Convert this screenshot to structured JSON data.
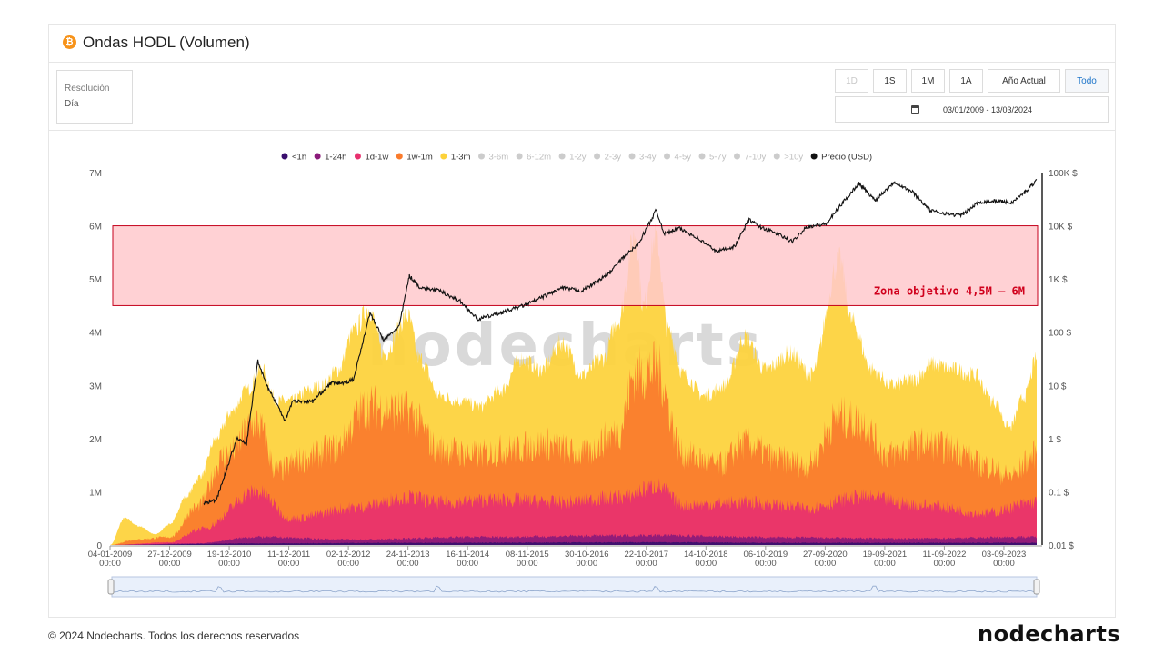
{
  "header": {
    "title": "Ondas HODL (Volumen)",
    "icon": "bitcoin-icon"
  },
  "resolution": {
    "label": "Resolución",
    "value": "Día"
  },
  "range_buttons": [
    {
      "label": "1D",
      "state": "disabled"
    },
    {
      "label": "1S",
      "state": "normal"
    },
    {
      "label": "1M",
      "state": "normal"
    },
    {
      "label": "1A",
      "state": "normal"
    },
    {
      "label": "Año Actual",
      "state": "normal"
    },
    {
      "label": "Todo",
      "state": "active"
    }
  ],
  "date_range": "03/01/2009 - 13/03/2024",
  "watermark": "nodecharts",
  "footer": {
    "copyright": "© 2024 Nodecharts. Todos los derechos reservados",
    "logo": "nodecharts"
  },
  "chart_data": {
    "type": "area",
    "title": "",
    "legend": {
      "placement": "top-center",
      "items": [
        {
          "name": "<1h",
          "color": "#3a0f6e",
          "active": true
        },
        {
          "name": "1-24h",
          "color": "#8b1a7a",
          "active": true
        },
        {
          "name": "1d-1w",
          "color": "#e8306e",
          "active": true
        },
        {
          "name": "1w-1m",
          "color": "#fa7b2c",
          "active": true
        },
        {
          "name": "1-3m",
          "color": "#fdd23a",
          "active": true
        },
        {
          "name": "3-6m",
          "color": "#cccccc",
          "active": false
        },
        {
          "name": "6-12m",
          "color": "#cccccc",
          "active": false
        },
        {
          "name": "1-2y",
          "color": "#cccccc",
          "active": false
        },
        {
          "name": "2-3y",
          "color": "#cccccc",
          "active": false
        },
        {
          "name": "3-4y",
          "color": "#cccccc",
          "active": false
        },
        {
          "name": "4-5y",
          "color": "#cccccc",
          "active": false
        },
        {
          "name": "5-7y",
          "color": "#cccccc",
          "active": false
        },
        {
          "name": "7-10y",
          "color": "#cccccc",
          "active": false
        },
        {
          "name": ">10y",
          "color": "#cccccc",
          "active": false
        },
        {
          "name": "Precio (USD)",
          "color": "#111111",
          "active": true
        }
      ]
    },
    "y_left": {
      "min": 0,
      "max": 7000000,
      "ticks": [
        "0",
        "1M",
        "2M",
        "3M",
        "4M",
        "5M",
        "6M",
        "7M"
      ]
    },
    "y_right": {
      "scale": "log",
      "min": 0.01,
      "max": 100000,
      "ticks": [
        "0.01 $",
        "0.1 $",
        "1 $",
        "10 $",
        "100 $",
        "1K $",
        "10K $",
        "100K $"
      ]
    },
    "x_ticks": [
      [
        "04-01-2009",
        "00:00"
      ],
      [
        "27-12-2009",
        "00:00"
      ],
      [
        "19-12-2010",
        "00:00"
      ],
      [
        "11-12-2011",
        "00:00"
      ],
      [
        "02-12-2012",
        "00:00"
      ],
      [
        "24-11-2013",
        "00:00"
      ],
      [
        "16-11-2014",
        "00:00"
      ],
      [
        "08-11-2015",
        "00:00"
      ],
      [
        "30-10-2016",
        "00:00"
      ],
      [
        "22-10-2017",
        "00:00"
      ],
      [
        "14-10-2018",
        "00:00"
      ],
      [
        "06-10-2019",
        "00:00"
      ],
      [
        "27-09-2020",
        "00:00"
      ],
      [
        "19-09-2021",
        "00:00"
      ],
      [
        "11-09-2022",
        "00:00"
      ],
      [
        "03-09-2023",
        "00:00"
      ]
    ],
    "x_range": [
      "2009-01-04",
      "2024-03-13"
    ],
    "series": [
      {
        "name": "1-3m",
        "color": "#fdd23a",
        "unit": "BTC",
        "points": [
          [
            "2009-01-04",
            0
          ],
          [
            "2009-04-01",
            500000
          ],
          [
            "2009-07-01",
            350000
          ],
          [
            "2009-10-01",
            200000
          ],
          [
            "2010-01-01",
            400000
          ],
          [
            "2010-04-01",
            900000
          ],
          [
            "2010-07-01",
            1300000
          ],
          [
            "2010-10-01",
            2000000
          ],
          [
            "2011-01-01",
            2500000
          ],
          [
            "2011-04-01",
            2900000
          ],
          [
            "2011-07-01",
            3300000
          ],
          [
            "2011-10-01",
            2700000
          ],
          [
            "2012-01-01",
            2700000
          ],
          [
            "2012-04-01",
            2900000
          ],
          [
            "2012-07-01",
            3000000
          ],
          [
            "2012-10-01",
            3300000
          ],
          [
            "2013-01-01",
            4000000
          ],
          [
            "2013-04-01",
            4450000
          ],
          [
            "2013-07-01",
            3600000
          ],
          [
            "2013-11-20",
            4300000
          ],
          [
            "2014-02-01",
            3500000
          ],
          [
            "2014-06-01",
            2800000
          ],
          [
            "2014-10-01",
            2700000
          ],
          [
            "2015-02-01",
            2600000
          ],
          [
            "2015-06-01",
            2900000
          ],
          [
            "2015-10-01",
            3500000
          ],
          [
            "2016-02-01",
            3300000
          ],
          [
            "2016-06-01",
            3800000
          ],
          [
            "2016-10-01",
            3200000
          ],
          [
            "2017-02-01",
            3500000
          ],
          [
            "2017-05-01",
            4200000
          ],
          [
            "2017-08-15",
            5850000
          ],
          [
            "2017-10-01",
            4500000
          ],
          [
            "2017-12-15",
            5800000
          ],
          [
            "2018-03-01",
            4000000
          ],
          [
            "2018-06-01",
            3200000
          ],
          [
            "2018-10-01",
            2800000
          ],
          [
            "2019-02-01",
            3000000
          ],
          [
            "2019-06-01",
            3900000
          ],
          [
            "2019-10-01",
            3300000
          ],
          [
            "2020-03-01",
            3600000
          ],
          [
            "2020-07-01",
            3200000
          ],
          [
            "2020-12-20",
            5350000
          ],
          [
            "2021-03-01",
            4200000
          ],
          [
            "2021-07-01",
            3300000
          ],
          [
            "2021-11-01",
            3000000
          ],
          [
            "2022-03-01",
            3100000
          ],
          [
            "2022-07-01",
            3400000
          ],
          [
            "2022-11-01",
            3300000
          ],
          [
            "2023-03-01",
            3200000
          ],
          [
            "2023-07-01",
            2700000
          ],
          [
            "2023-10-01",
            2200000
          ],
          [
            "2024-01-01",
            2800000
          ],
          [
            "2024-03-13",
            3500000
          ]
        ]
      },
      {
        "name": "1w-1m",
        "color": "#fa7b2c",
        "unit": "BTC",
        "points": [
          [
            "2009-01-04",
            0
          ],
          [
            "2009-06-01",
            100000
          ],
          [
            "2010-01-01",
            150000
          ],
          [
            "2010-06-01",
            700000
          ],
          [
            "2010-12-01",
            1700000
          ],
          [
            "2011-06-01",
            2300000
          ],
          [
            "2011-10-01",
            1400000
          ],
          [
            "2012-03-01",
            1600000
          ],
          [
            "2012-09-01",
            1800000
          ],
          [
            "2013-04-01",
            2600000
          ],
          [
            "2013-11-20",
            2500000
          ],
          [
            "2014-06-01",
            1800000
          ],
          [
            "2015-01-01",
            1700000
          ],
          [
            "2015-08-01",
            1800000
          ],
          [
            "2016-03-01",
            1900000
          ],
          [
            "2016-10-01",
            1700000
          ],
          [
            "2017-05-01",
            2100000
          ],
          [
            "2017-08-15",
            3200000
          ],
          [
            "2017-12-15",
            3300000
          ],
          [
            "2018-06-01",
            1700000
          ],
          [
            "2019-01-01",
            1500000
          ],
          [
            "2019-06-01",
            1900000
          ],
          [
            "2020-01-01",
            1600000
          ],
          [
            "2020-06-01",
            1500000
          ],
          [
            "2020-12-20",
            2400000
          ],
          [
            "2021-05-01",
            2300000
          ],
          [
            "2021-10-01",
            1700000
          ],
          [
            "2022-05-01",
            1900000
          ],
          [
            "2022-11-01",
            1800000
          ],
          [
            "2023-05-01",
            1500000
          ],
          [
            "2023-10-01",
            1300000
          ],
          [
            "2024-03-13",
            1700000
          ]
        ]
      },
      {
        "name": "1d-1w",
        "color": "#e8306e",
        "unit": "BTC",
        "points": [
          [
            "2009-01-04",
            0
          ],
          [
            "2010-01-01",
            50000
          ],
          [
            "2010-07-01",
            300000
          ],
          [
            "2011-06-01",
            1000000
          ],
          [
            "2012-01-01",
            500000
          ],
          [
            "2013-01-01",
            700000
          ],
          [
            "2013-11-20",
            900000
          ],
          [
            "2014-06-01",
            800000
          ],
          [
            "2015-06-01",
            850000
          ],
          [
            "2016-06-01",
            800000
          ],
          [
            "2017-06-01",
            900000
          ],
          [
            "2017-12-15",
            1100000
          ],
          [
            "2018-06-01",
            750000
          ],
          [
            "2019-06-01",
            800000
          ],
          [
            "2020-06-01",
            700000
          ],
          [
            "2021-05-01",
            900000
          ],
          [
            "2022-05-01",
            750000
          ],
          [
            "2023-05-01",
            600000
          ],
          [
            "2024-03-13",
            800000
          ]
        ]
      },
      {
        "name": "1-24h",
        "color": "#8b1a7a",
        "unit": "BTC",
        "points": [
          [
            "2009-01-04",
            0
          ],
          [
            "2010-06-01",
            30000
          ],
          [
            "2011-06-01",
            150000
          ],
          [
            "2013-01-01",
            100000
          ],
          [
            "2015-01-01",
            150000
          ],
          [
            "2017-12-15",
            180000
          ],
          [
            "2020-01-01",
            140000
          ],
          [
            "2022-01-01",
            120000
          ],
          [
            "2024-03-13",
            150000
          ]
        ]
      },
      {
        "name": "<1h",
        "color": "#3a0f6e",
        "unit": "BTC",
        "points": [
          [
            "2009-01-04",
            0
          ],
          [
            "2011-06-01",
            30000
          ],
          [
            "2014-01-01",
            40000
          ],
          [
            "2017-12-15",
            50000
          ],
          [
            "2020-01-01",
            40000
          ],
          [
            "2024-03-13",
            40000
          ]
        ]
      }
    ],
    "price_series": {
      "name": "Precio (USD)",
      "color": "#111111",
      "axis": "right",
      "points": [
        [
          "2010-07-18",
          0.06
        ],
        [
          "2010-10-01",
          0.07
        ],
        [
          "2010-12-01",
          0.25
        ],
        [
          "2011-02-01",
          1.0
        ],
        [
          "2011-04-01",
          0.8
        ],
        [
          "2011-06-08",
          29
        ],
        [
          "2011-08-01",
          10
        ],
        [
          "2011-11-18",
          2.2
        ],
        [
          "2012-01-01",
          5
        ],
        [
          "2012-05-01",
          5
        ],
        [
          "2012-08-15",
          11
        ],
        [
          "2012-11-01",
          11
        ],
        [
          "2013-01-01",
          13
        ],
        [
          "2013-04-09",
          230
        ],
        [
          "2013-07-01",
          70
        ],
        [
          "2013-10-01",
          130
        ],
        [
          "2013-12-01",
          1150
        ],
        [
          "2014-02-01",
          700
        ],
        [
          "2014-06-01",
          600
        ],
        [
          "2014-10-01",
          380
        ],
        [
          "2015-01-14",
          175
        ],
        [
          "2015-06-01",
          230
        ],
        [
          "2015-11-01",
          330
        ],
        [
          "2016-06-01",
          680
        ],
        [
          "2016-10-01",
          600
        ],
        [
          "2017-03-01",
          1200
        ],
        [
          "2017-06-01",
          2500
        ],
        [
          "2017-09-01",
          4500
        ],
        [
          "2017-12-17",
          19500
        ],
        [
          "2018-02-06",
          7000
        ],
        [
          "2018-05-01",
          9000
        ],
        [
          "2018-08-01",
          6500
        ],
        [
          "2018-12-15",
          3300
        ],
        [
          "2019-04-01",
          4100
        ],
        [
          "2019-06-26",
          13000
        ],
        [
          "2019-09-01",
          9500
        ],
        [
          "2019-12-15",
          7000
        ],
        [
          "2020-03-12",
          5000
        ],
        [
          "2020-06-01",
          9500
        ],
        [
          "2020-10-01",
          10800
        ],
        [
          "2020-12-20",
          23000
        ],
        [
          "2021-04-14",
          63000
        ],
        [
          "2021-07-20",
          30000
        ],
        [
          "2021-11-10",
          67000
        ],
        [
          "2022-03-01",
          43000
        ],
        [
          "2022-06-18",
          19000
        ],
        [
          "2022-11-21",
          15800
        ],
        [
          "2023-01-01",
          16600
        ],
        [
          "2023-04-01",
          28000
        ],
        [
          "2023-08-01",
          29000
        ],
        [
          "2023-10-15",
          27000
        ],
        [
          "2024-01-01",
          42000
        ],
        [
          "2024-03-13",
          73000
        ]
      ]
    },
    "annotation": {
      "label": "Zona objetivo 4,5M – 6M",
      "from": 4500000,
      "to": 6000000,
      "fill": "#ffc9cc",
      "border": "#c4001b",
      "label_color": "#d0001c"
    }
  }
}
